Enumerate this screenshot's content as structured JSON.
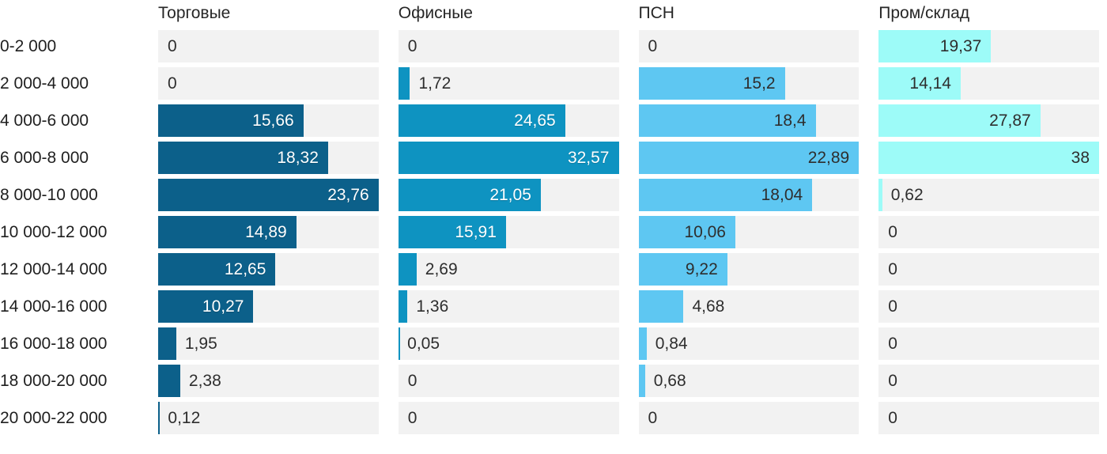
{
  "chart_data": {
    "type": "bar",
    "orientation": "horizontal",
    "layout": "small-multiples: 4 bar columns sharing one category axis, each column scaled to its own max",
    "grid": "off",
    "track_color": "#f2f2f2",
    "categories": [
      "0-2 000",
      "2 000-4 000",
      "4 000-6 000",
      "6 000-8 000",
      "8 000-10 000",
      "10 000-12 000",
      "12 000-14 000",
      "14 000-16 000",
      "16 000-18 000",
      "18 000-20 000",
      "20 000-22 000"
    ],
    "series": [
      {
        "name": "Торговые",
        "color": "#0c608a",
        "label_inside_color": "#ffffff",
        "axis_max": 23.76,
        "values": [
          0,
          0,
          15.66,
          18.32,
          23.76,
          14.89,
          12.65,
          10.27,
          1.95,
          2.38,
          0.12
        ],
        "labels": [
          "0",
          "0",
          "15,66",
          "18,32",
          "23,76",
          "14,89",
          "12,65",
          "10,27",
          "1,95",
          "2,38",
          "0,12"
        ]
      },
      {
        "name": "Офисные",
        "color": "#0e93c1",
        "label_inside_color": "#ffffff",
        "axis_max": 32.57,
        "values": [
          0,
          1.72,
          24.65,
          32.57,
          21.05,
          15.91,
          2.69,
          1.36,
          0.05,
          0,
          0
        ],
        "labels": [
          "0",
          "1,72",
          "24,65",
          "32,57",
          "21,05",
          "15,91",
          "2,69",
          "1,36",
          "0,05",
          "0",
          "0"
        ]
      },
      {
        "name": "ПСН",
        "color": "#5ec7f2",
        "label_inside_color": "#2e2e2e",
        "axis_max": 22.89,
        "values": [
          0,
          15.2,
          18.4,
          22.89,
          18.04,
          10.06,
          9.22,
          4.68,
          0.84,
          0.68,
          0
        ],
        "labels": [
          "0",
          "15,2",
          "18,4",
          "22,89",
          "18,04",
          "10,06",
          "9,22",
          "4,68",
          "0,84",
          "0,68",
          "0"
        ]
      },
      {
        "name": "Пром/склад",
        "color": "#9dfbf8",
        "label_inside_color": "#2e2e2e",
        "axis_max": 38,
        "values": [
          19.37,
          14.14,
          27.87,
          38,
          0.62,
          0,
          0,
          0,
          0,
          0,
          0
        ],
        "labels": [
          "19,37",
          "14,14",
          "27,87",
          "38",
          "0,62",
          "0",
          "0",
          "0",
          "0",
          "0",
          "0"
        ]
      }
    ]
  }
}
